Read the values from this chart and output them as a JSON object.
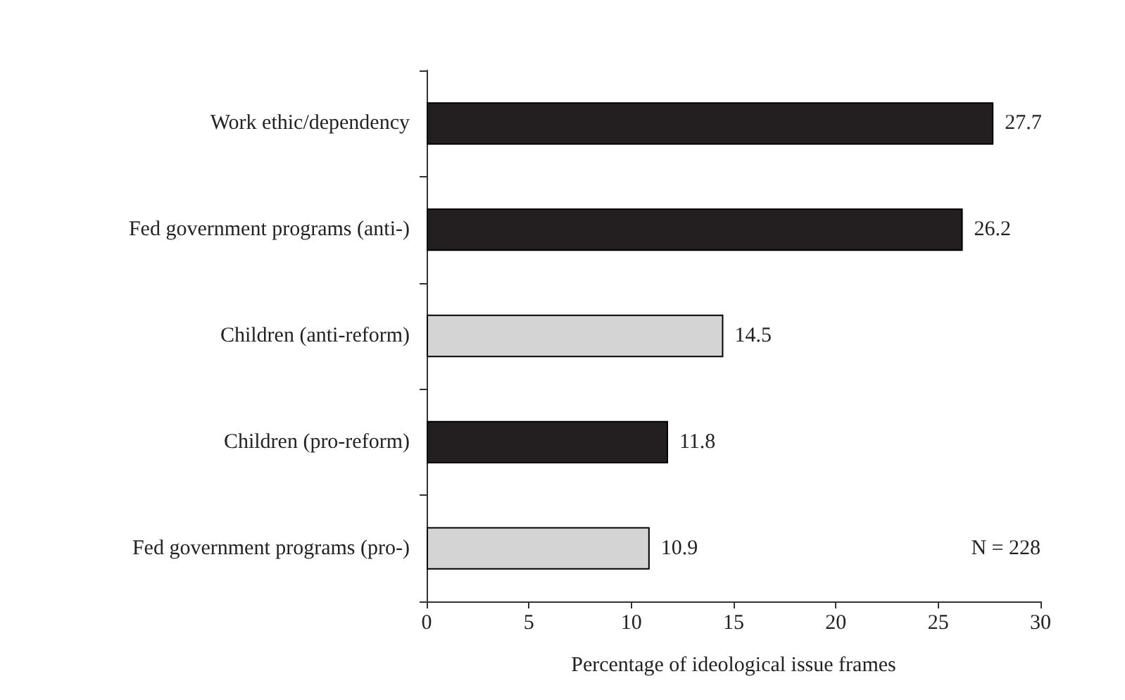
{
  "chart_data": {
    "type": "bar",
    "orientation": "horizontal",
    "xlabel": "Percentage of ideological issue frames",
    "categories": [
      "Work ethic/dependency",
      "Fed government programs (anti-)",
      "Children (anti-reform)",
      "Children (pro-reform)",
      "Fed government programs (pro-)"
    ],
    "values": [
      27.7,
      26.2,
      14.5,
      11.8,
      10.9
    ],
    "colors": [
      "#231f20",
      "#231f20",
      "#d4d4d4",
      "#231f20",
      "#d4d4d4"
    ],
    "xlim": [
      0,
      30
    ],
    "xticks": [
      0,
      5,
      10,
      15,
      20,
      25,
      30
    ],
    "data_labels": true,
    "grid": false,
    "annotations": [
      "N = 228"
    ]
  }
}
